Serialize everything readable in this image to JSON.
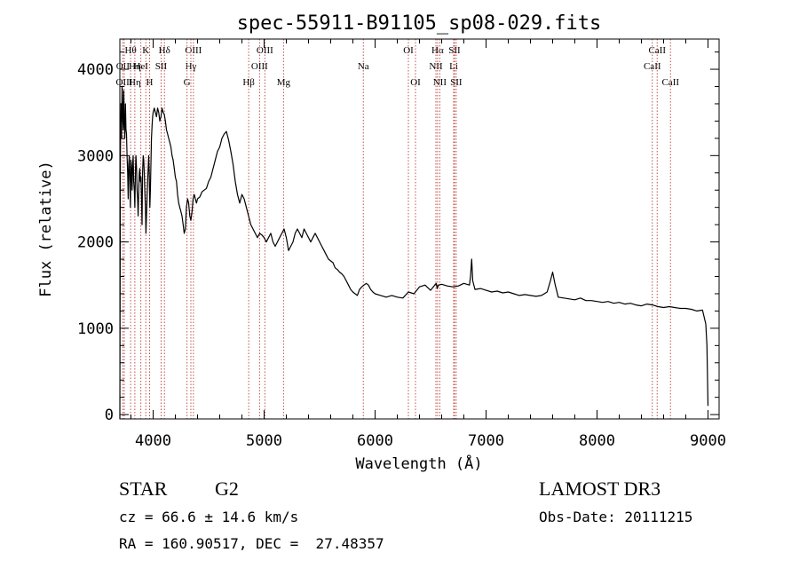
{
  "chart_data": {
    "type": "line",
    "title": "spec-55911-B91105_sp08-029.fits",
    "xlabel": "Wavelength (Å)",
    "ylabel": "Flux (relative)",
    "xlim": [
      3700,
      9100
    ],
    "ylim": [
      -50,
      4350
    ],
    "xticks": [
      4000,
      5000,
      6000,
      7000,
      8000,
      9000
    ],
    "xtick_labels": [
      "4000",
      "5000",
      "6000",
      "7000",
      "8000",
      "9000"
    ],
    "yticks": [
      0,
      1000,
      2000,
      3000,
      4000
    ],
    "ytick_labels": [
      "0",
      "1000",
      "2000",
      "3000",
      "4000"
    ],
    "grid": false,
    "line_color": "#000000",
    "marker_color": "#c0504d",
    "series": [
      {
        "name": "flux",
        "x": [
          3700,
          3705,
          3710,
          3715,
          3720,
          3725,
          3730,
          3735,
          3740,
          3745,
          3750,
          3755,
          3760,
          3765,
          3770,
          3775,
          3780,
          3785,
          3790,
          3795,
          3800,
          3805,
          3810,
          3815,
          3820,
          3825,
          3830,
          3835,
          3840,
          3845,
          3850,
          3855,
          3860,
          3865,
          3870,
          3875,
          3880,
          3885,
          3890,
          3895,
          3900,
          3905,
          3910,
          3915,
          3920,
          3925,
          3930,
          3935,
          3940,
          3945,
          3950,
          3955,
          3960,
          3965,
          3970,
          3975,
          3980,
          3985,
          3990,
          3995,
          4000,
          4010,
          4020,
          4030,
          4040,
          4050,
          4060,
          4070,
          4080,
          4090,
          4100,
          4110,
          4120,
          4130,
          4140,
          4150,
          4160,
          4170,
          4180,
          4190,
          4200,
          4210,
          4220,
          4230,
          4240,
          4250,
          4260,
          4270,
          4280,
          4290,
          4300,
          4310,
          4320,
          4330,
          4340,
          4350,
          4360,
          4370,
          4380,
          4390,
          4400,
          4420,
          4440,
          4460,
          4480,
          4500,
          4520,
          4540,
          4560,
          4580,
          4600,
          4620,
          4640,
          4660,
          4680,
          4700,
          4720,
          4740,
          4760,
          4780,
          4800,
          4820,
          4840,
          4860,
          4880,
          4900,
          4920,
          4940,
          4960,
          4980,
          5000,
          5020,
          5040,
          5060,
          5080,
          5100,
          5120,
          5140,
          5160,
          5180,
          5200,
          5220,
          5240,
          5260,
          5280,
          5300,
          5320,
          5340,
          5360,
          5380,
          5400,
          5420,
          5440,
          5460,
          5480,
          5500,
          5520,
          5540,
          5560,
          5580,
          5600,
          5620,
          5640,
          5660,
          5680,
          5700,
          5720,
          5740,
          5760,
          5780,
          5800,
          5820,
          5840,
          5860,
          5880,
          5900,
          5920,
          5940,
          5960,
          5980,
          6000,
          6050,
          6100,
          6150,
          6200,
          6250,
          6300,
          6350,
          6400,
          6450,
          6500,
          6550,
          6560,
          6570,
          6600,
          6650,
          6700,
          6750,
          6800,
          6850,
          6860,
          6870,
          6880,
          6900,
          6950,
          7000,
          7050,
          7100,
          7150,
          7200,
          7250,
          7300,
          7350,
          7400,
          7450,
          7500,
          7550,
          7580,
          7600,
          7620,
          7650,
          7700,
          7750,
          7800,
          7850,
          7900,
          7950,
          8000,
          8050,
          8100,
          8150,
          8200,
          8250,
          8300,
          8350,
          8400,
          8450,
          8500,
          8550,
          8600,
          8650,
          8700,
          8750,
          8800,
          8850,
          8900,
          8950,
          8980,
          8990,
          9000
        ],
        "values": [
          -50,
          3000,
          3600,
          3200,
          3800,
          3500,
          3300,
          3750,
          3400,
          3200,
          3600,
          3300,
          3250,
          3000,
          2800,
          2500,
          2900,
          3000,
          2700,
          2400,
          2950,
          2850,
          2600,
          2900,
          3000,
          2700,
          2600,
          2400,
          2800,
          3000,
          2850,
          2600,
          2500,
          2300,
          2600,
          2800,
          2850,
          2700,
          2750,
          2500,
          2200,
          2800,
          3000,
          2950,
          2800,
          2600,
          2400,
          2100,
          2300,
          2500,
          2700,
          2850,
          3000,
          2800,
          2400,
          2600,
          2900,
          3200,
          3350,
          3450,
          3500,
          3550,
          3500,
          3450,
          3550,
          3500,
          3400,
          3450,
          3550,
          3500,
          3480,
          3400,
          3300,
          3250,
          3200,
          3150,
          3100,
          3000,
          2950,
          2850,
          2750,
          2700,
          2550,
          2450,
          2400,
          2350,
          2300,
          2200,
          2100,
          2150,
          2400,
          2500,
          2450,
          2300,
          2250,
          2350,
          2500,
          2550,
          2500,
          2450,
          2500,
          2520,
          2580,
          2600,
          2620,
          2700,
          2750,
          2850,
          2950,
          3050,
          3100,
          3200,
          3250,
          3280,
          3180,
          3050,
          2900,
          2700,
          2550,
          2450,
          2550,
          2500,
          2400,
          2300,
          2200,
          2150,
          2100,
          2050,
          2100,
          2080,
          2050,
          2000,
          2050,
          2100,
          2000,
          1950,
          2000,
          2050,
          2100,
          2150,
          2050,
          1900,
          1950,
          2000,
          2100,
          2150,
          2100,
          2050,
          2150,
          2100,
          2050,
          2000,
          2050,
          2100,
          2050,
          2000,
          1950,
          1900,
          1850,
          1800,
          1780,
          1760,
          1700,
          1680,
          1650,
          1630,
          1600,
          1550,
          1500,
          1450,
          1420,
          1400,
          1380,
          1450,
          1480,
          1500,
          1520,
          1500,
          1450,
          1420,
          1400,
          1380,
          1360,
          1380,
          1360,
          1350,
          1420,
          1400,
          1480,
          1500,
          1440,
          1520,
          1460,
          1500,
          1510,
          1490,
          1480,
          1490,
          1520,
          1500,
          1600,
          1800,
          1550,
          1450,
          1460,
          1440,
          1420,
          1430,
          1410,
          1420,
          1400,
          1380,
          1390,
          1380,
          1370,
          1380,
          1420,
          1550,
          1650,
          1520,
          1360,
          1350,
          1340,
          1330,
          1350,
          1320,
          1320,
          1310,
          1300,
          1310,
          1290,
          1300,
          1280,
          1290,
          1270,
          1260,
          1280,
          1270,
          1250,
          1240,
          1250,
          1240,
          1230,
          1230,
          1220,
          1200,
          1210,
          1050,
          800,
          100
        ]
      }
    ],
    "line_markers": [
      {
        "label": "Hθ",
        "x": 3797,
        "row": 1
      },
      {
        "label": "OII",
        "x": 3727,
        "row": 2
      },
      {
        "label": "Hη",
        "x": 3835,
        "row": 2
      },
      {
        "label": "OIII",
        "x": 3740,
        "row": 3
      },
      {
        "label": "Hη",
        "x": 3835,
        "row": 3
      },
      {
        "label": "K",
        "x": 3934,
        "row": 1
      },
      {
        "label": "HeI",
        "x": 3889,
        "row": 2
      },
      {
        "label": "H",
        "x": 3968,
        "row": 3
      },
      {
        "label": "Hδ",
        "x": 4102,
        "row": 1
      },
      {
        "label": "SII",
        "x": 4072,
        "row": 2
      },
      {
        "label": "OIII",
        "x": 4363,
        "row": 1
      },
      {
        "label": "Hγ",
        "x": 4340,
        "row": 2
      },
      {
        "label": "G",
        "x": 4305,
        "row": 3
      },
      {
        "label": "OIII",
        "x": 5007,
        "row": 1
      },
      {
        "label": "OIII",
        "x": 4959,
        "row": 2
      },
      {
        "label": "Hβ",
        "x": 4861,
        "row": 3
      },
      {
        "label": "Mg",
        "x": 5175,
        "row": 3
      },
      {
        "label": "Na",
        "x": 5894,
        "row": 2
      },
      {
        "label": "OI",
        "x": 6300,
        "row": 1
      },
      {
        "label": "OI",
        "x": 6364,
        "row": 3
      },
      {
        "label": "Hα",
        "x": 6563,
        "row": 1
      },
      {
        "label": "SII",
        "x": 6716,
        "row": 1
      },
      {
        "label": "NII",
        "x": 6548,
        "row": 2
      },
      {
        "label": "Li",
        "x": 6708,
        "row": 2
      },
      {
        "label": "NII",
        "x": 6583,
        "row": 3
      },
      {
        "label": "SII",
        "x": 6731,
        "row": 3
      },
      {
        "label": "CaII",
        "x": 8542,
        "row": 1
      },
      {
        "label": "CaII",
        "x": 8498,
        "row": 2
      },
      {
        "label": "CaII",
        "x": 8662,
        "row": 3
      }
    ]
  },
  "info": {
    "object_class": "STAR",
    "subclass": "G2",
    "redshift": "cz = 66.6 ± 14.6 km/s",
    "coords": "RA = 160.90517, DEC =  27.48357",
    "survey": "LAMOST DR3",
    "obs_date": "Obs-Date: 20111215"
  }
}
